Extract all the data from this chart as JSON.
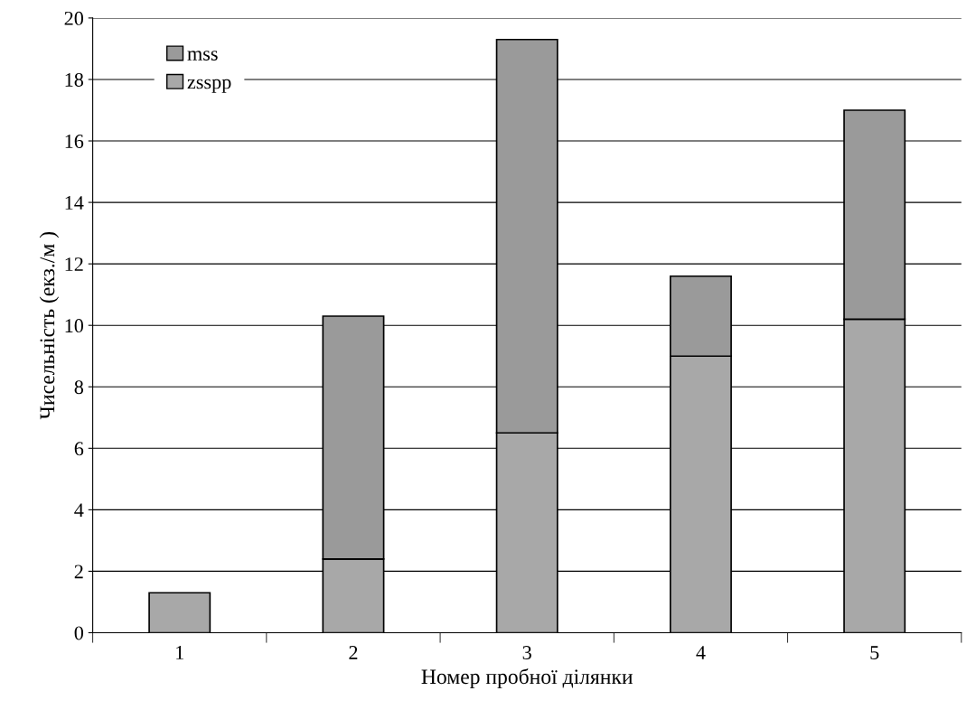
{
  "chart_data": {
    "type": "bar",
    "stacked": true,
    "xlabel": "Номер пробної ділянки",
    "ylabel": "Чисельність (екз./м )",
    "categories": [
      "1",
      "2",
      "3",
      "4",
      "5"
    ],
    "series": [
      {
        "name": "zsspp",
        "color": "#a8a8a8",
        "values": [
          1.3,
          2.4,
          6.5,
          9.0,
          10.2
        ]
      },
      {
        "name": "mss",
        "color": "#9a9a9a",
        "values": [
          null,
          7.9,
          12.8,
          2.6,
          6.8
        ]
      }
    ],
    "ylim": [
      0,
      20
    ],
    "yticks": [
      0,
      2,
      4,
      6,
      8,
      10,
      12,
      14,
      16,
      18,
      20
    ],
    "grid": "y",
    "legend": "top left"
  }
}
